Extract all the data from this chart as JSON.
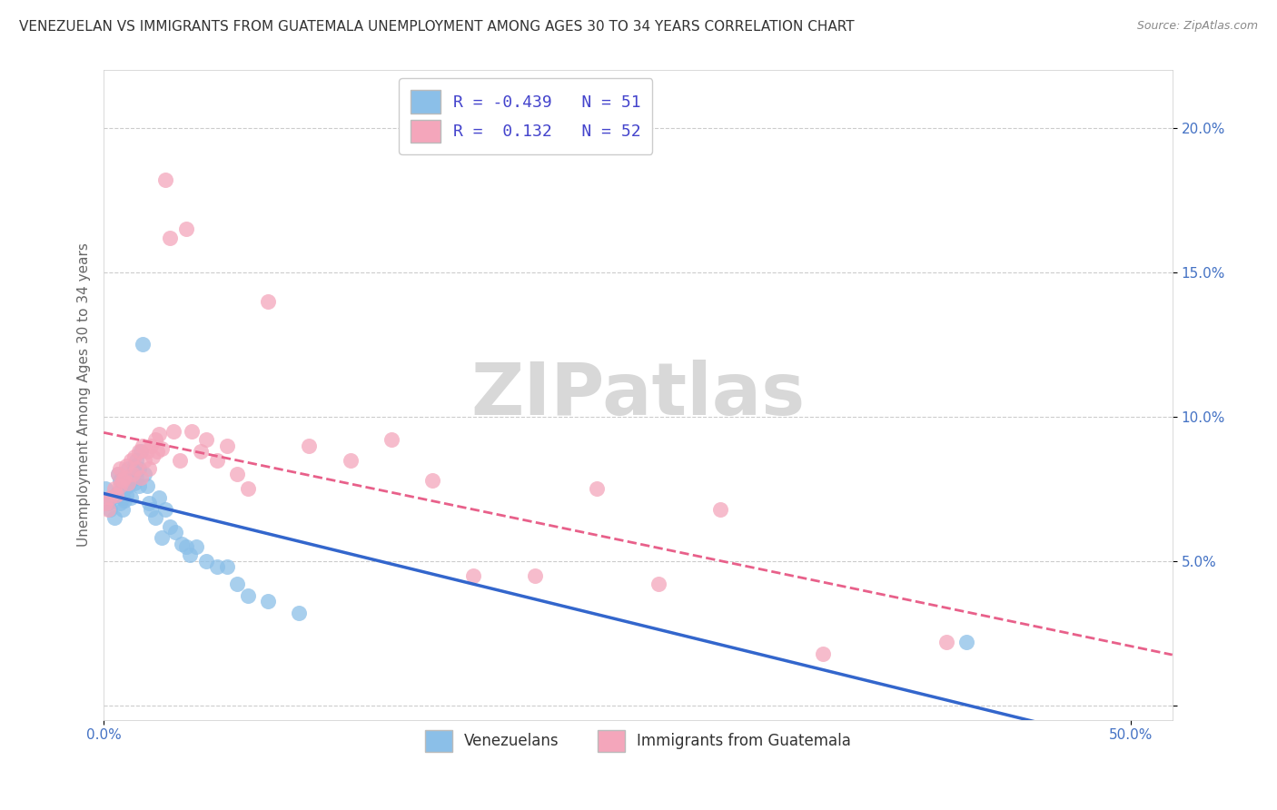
{
  "title": "VENEZUELAN VS IMMIGRANTS FROM GUATEMALA UNEMPLOYMENT AMONG AGES 30 TO 34 YEARS CORRELATION CHART",
  "source": "Source: ZipAtlas.com",
  "ylabel": "Unemployment Among Ages 30 to 34 years",
  "xlim": [
    0.0,
    0.52
  ],
  "ylim": [
    -0.005,
    0.22
  ],
  "yticks": [
    0.0,
    0.05,
    0.1,
    0.15,
    0.2
  ],
  "ytick_labels": [
    "",
    "5.0%",
    "10.0%",
    "15.0%",
    "20.0%"
  ],
  "xticks": [
    0.0,
    0.5
  ],
  "xtick_labels": [
    "0.0%",
    "50.0%"
  ],
  "venezuelan_R": -0.439,
  "venezuelan_N": 51,
  "guatemalan_R": 0.132,
  "guatemalan_N": 52,
  "blue_color": "#8bbfe8",
  "pink_color": "#f4a6bb",
  "blue_line_color": "#3366cc",
  "pink_line_color": "#e8608a",
  "venezuelan_x": [
    0.001,
    0.002,
    0.003,
    0.004,
    0.005,
    0.006,
    0.007,
    0.007,
    0.008,
    0.008,
    0.009,
    0.009,
    0.01,
    0.01,
    0.011,
    0.011,
    0.012,
    0.012,
    0.013,
    0.013,
    0.014,
    0.015,
    0.015,
    0.016,
    0.016,
    0.017,
    0.017,
    0.018,
    0.019,
    0.02,
    0.021,
    0.022,
    0.023,
    0.025,
    0.027,
    0.028,
    0.03,
    0.032,
    0.035,
    0.038,
    0.04,
    0.042,
    0.045,
    0.05,
    0.055,
    0.06,
    0.065,
    0.07,
    0.08,
    0.095,
    0.42
  ],
  "venezuelan_y": [
    0.075,
    0.07,
    0.068,
    0.072,
    0.065,
    0.073,
    0.08,
    0.074,
    0.078,
    0.07,
    0.072,
    0.068,
    0.075,
    0.071,
    0.079,
    0.073,
    0.082,
    0.076,
    0.078,
    0.072,
    0.08,
    0.083,
    0.077,
    0.085,
    0.079,
    0.082,
    0.076,
    0.088,
    0.125,
    0.08,
    0.076,
    0.07,
    0.068,
    0.065,
    0.072,
    0.058,
    0.068,
    0.062,
    0.06,
    0.056,
    0.055,
    0.052,
    0.055,
    0.05,
    0.048,
    0.048,
    0.042,
    0.038,
    0.036,
    0.032,
    0.022
  ],
  "guatemalan_x": [
    0.001,
    0.002,
    0.003,
    0.005,
    0.006,
    0.007,
    0.008,
    0.008,
    0.009,
    0.01,
    0.011,
    0.012,
    0.013,
    0.014,
    0.015,
    0.016,
    0.017,
    0.018,
    0.019,
    0.02,
    0.021,
    0.022,
    0.023,
    0.024,
    0.025,
    0.026,
    0.027,
    0.028,
    0.03,
    0.032,
    0.034,
    0.037,
    0.04,
    0.043,
    0.047,
    0.05,
    0.055,
    0.06,
    0.065,
    0.07,
    0.08,
    0.1,
    0.12,
    0.14,
    0.16,
    0.18,
    0.21,
    0.24,
    0.27,
    0.3,
    0.35,
    0.41
  ],
  "guatemalan_y": [
    0.07,
    0.068,
    0.072,
    0.075,
    0.073,
    0.08,
    0.076,
    0.082,
    0.078,
    0.079,
    0.083,
    0.077,
    0.085,
    0.08,
    0.086,
    0.082,
    0.088,
    0.079,
    0.09,
    0.085,
    0.088,
    0.082,
    0.09,
    0.086,
    0.092,
    0.088,
    0.094,
    0.089,
    0.182,
    0.162,
    0.095,
    0.085,
    0.165,
    0.095,
    0.088,
    0.092,
    0.085,
    0.09,
    0.08,
    0.075,
    0.14,
    0.09,
    0.085,
    0.092,
    0.078,
    0.045,
    0.045,
    0.075,
    0.042,
    0.068,
    0.018,
    0.022
  ],
  "background_color": "#ffffff",
  "grid_color": "#cccccc",
  "title_fontsize": 11,
  "axis_label_fontsize": 11,
  "tick_fontsize": 11,
  "watermark_color": "#d8d8d8"
}
